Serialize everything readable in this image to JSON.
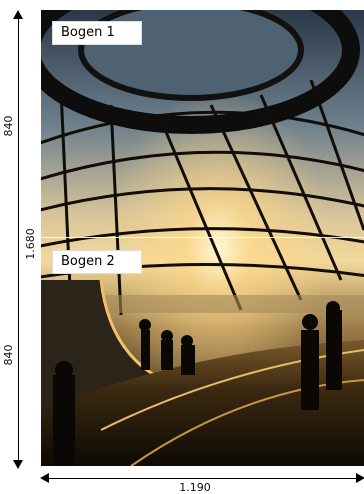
{
  "labels": {
    "sheet_1": "Bogen 1",
    "sheet_2": "Bogen 2"
  },
  "dimensions": {
    "height_top": "840",
    "height_total": "1.680",
    "height_bottom": "840",
    "width": "1.190"
  },
  "photo": {
    "subject": "glass dome interior at sunset"
  }
}
